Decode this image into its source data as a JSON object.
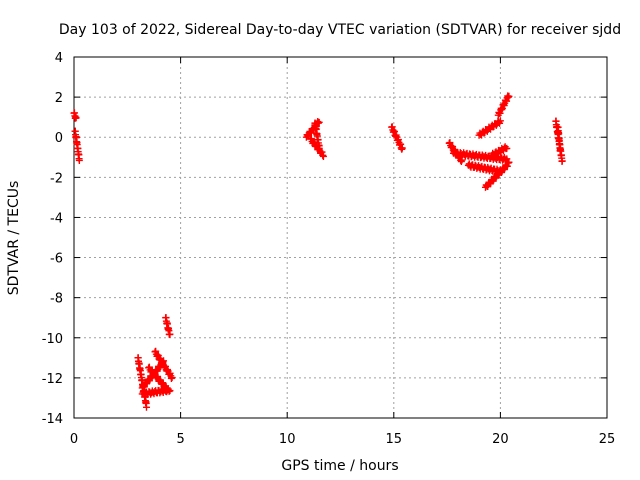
{
  "chart_data": {
    "type": "scatter",
    "title": "Day 103 of 2022, Sidereal Day-to-day VTEC variation (SDTVAR) for receiver sjdd",
    "xlabel": "GPS time / hours",
    "ylabel": "SDTVAR / TECUs",
    "xlim": [
      0,
      25
    ],
    "ylim": [
      -14,
      4
    ],
    "xticks": [
      "0",
      "5",
      "10",
      "15",
      "20",
      "25"
    ],
    "yticks": [
      "4",
      "2",
      "0",
      "-2",
      "-4",
      "-6",
      "-8",
      "-10",
      "-12",
      "-14"
    ],
    "grid": true,
    "marker": "plus",
    "series_color": "#ff0000",
    "segments": [
      {
        "x0": 0.0,
        "x1": 0.1,
        "y0": 1.2,
        "y1": 0.9
      },
      {
        "x0": 0.05,
        "x1": 0.25,
        "y0": 0.3,
        "y1": -1.1
      },
      {
        "x0": 3.0,
        "x1": 3.4,
        "y0": -11.0,
        "y1": -13.4
      },
      {
        "x0": 3.2,
        "x1": 4.2,
        "y0": -12.5,
        "y1": -11.2
      },
      {
        "x0": 3.5,
        "x1": 4.4,
        "y0": -11.5,
        "y1": -12.6
      },
      {
        "x0": 3.8,
        "x1": 4.6,
        "y0": -10.7,
        "y1": -12.0
      },
      {
        "x0": 3.2,
        "x1": 4.5,
        "y0": -12.8,
        "y1": -12.6
      },
      {
        "x0": 4.3,
        "x1": 4.5,
        "y0": -9.0,
        "y1": -9.9
      },
      {
        "x0": 10.9,
        "x1": 11.5,
        "y0": 0.0,
        "y1": 0.8
      },
      {
        "x0": 11.1,
        "x1": 11.7,
        "y0": -0.1,
        "y1": -0.9
      },
      {
        "x0": 11.3,
        "x1": 11.5,
        "y0": 0.7,
        "y1": -0.5
      },
      {
        "x0": 14.9,
        "x1": 15.4,
        "y0": 0.5,
        "y1": -0.6
      },
      {
        "x0": 17.6,
        "x1": 18.2,
        "y0": -0.3,
        "y1": -1.2
      },
      {
        "x0": 17.8,
        "x1": 20.3,
        "y0": -0.8,
        "y1": -1.1
      },
      {
        "x0": 18.5,
        "x1": 20.0,
        "y0": -1.4,
        "y1": -1.7
      },
      {
        "x0": 19.3,
        "x1": 20.4,
        "y0": -2.5,
        "y1": -1.3
      },
      {
        "x0": 19.0,
        "x1": 20.0,
        "y0": 0.1,
        "y1": 0.8
      },
      {
        "x0": 19.9,
        "x1": 20.4,
        "y0": 1.1,
        "y1": 2.1
      },
      {
        "x0": 19.6,
        "x1": 20.3,
        "y0": -0.9,
        "y1": -0.5
      },
      {
        "x0": 22.6,
        "x1": 22.9,
        "y0": 0.8,
        "y1": -1.2
      },
      {
        "x0": 22.7,
        "x1": 22.8,
        "y0": 0.5,
        "y1": -0.6
      }
    ]
  }
}
